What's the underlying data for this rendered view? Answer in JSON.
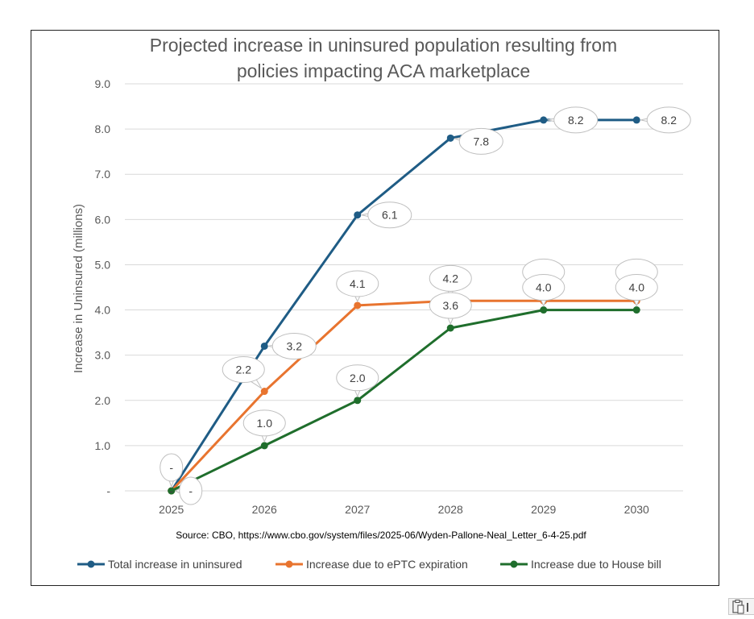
{
  "chart_data": {
    "type": "line",
    "title": "Projected increase in uninsured population resulting from policies impacting ACA marketplace",
    "title_lines": [
      "Projected increase in uninsured population resulting from",
      "policies impacting ACA marketplace"
    ],
    "ylabel": "Increase in Uninsured (millions)",
    "xlabel": "",
    "categories": [
      "2025",
      "2026",
      "2027",
      "2028",
      "2029",
      "2030"
    ],
    "ylim": [
      0,
      9
    ],
    "yticks": [
      0,
      1,
      2,
      3,
      4,
      5,
      6,
      7,
      8,
      9
    ],
    "ytick_labels": [
      "-",
      "1.0",
      "2.0",
      "3.0",
      "4.0",
      "5.0",
      "6.0",
      "7.0",
      "8.0",
      "9.0"
    ],
    "grid": true,
    "legend_position": "bottom",
    "source": "Source: CBO, https://www.cbo.gov/system/files/2025-06/Wyden-Pallone-Neal_Letter_6-4-25.pdf",
    "series": [
      {
        "name": "Total increase in uninsured",
        "color": "#1f5c85",
        "values": [
          0,
          3.2,
          6.1,
          7.8,
          8.2,
          8.2
        ],
        "labels": [
          "-",
          "3.2",
          "6.1",
          "7.8",
          "8.2",
          "8.2"
        ]
      },
      {
        "name": "Increase due to ePTC expiration",
        "color": "#e8742f",
        "values": [
          0,
          2.2,
          4.1,
          4.2,
          4.2,
          4.2
        ],
        "labels": [
          "-",
          "2.2",
          "4.1",
          "4.2",
          "",
          ""
        ]
      },
      {
        "name": "Increase due to House bill",
        "color": "#1f6e2c",
        "values": [
          0,
          1.0,
          2.0,
          3.6,
          4.0,
          4.0
        ],
        "labels": [
          "-",
          "1.0",
          "2.0",
          "3.6",
          "4.0",
          "4.0"
        ]
      }
    ]
  }
}
